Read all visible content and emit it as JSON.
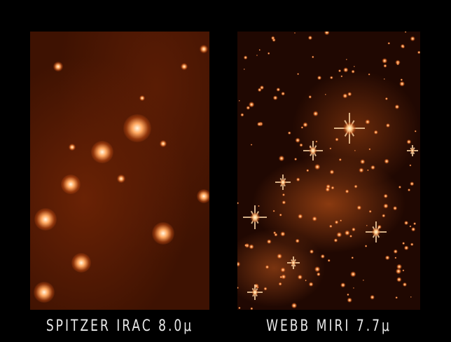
{
  "panels": [
    {
      "label": "SPITZER IRAC 8.0μ",
      "color": "#3e1202"
    },
    {
      "label": "WEBB MIRI 7.7μ",
      "color": "#200802"
    }
  ]
}
